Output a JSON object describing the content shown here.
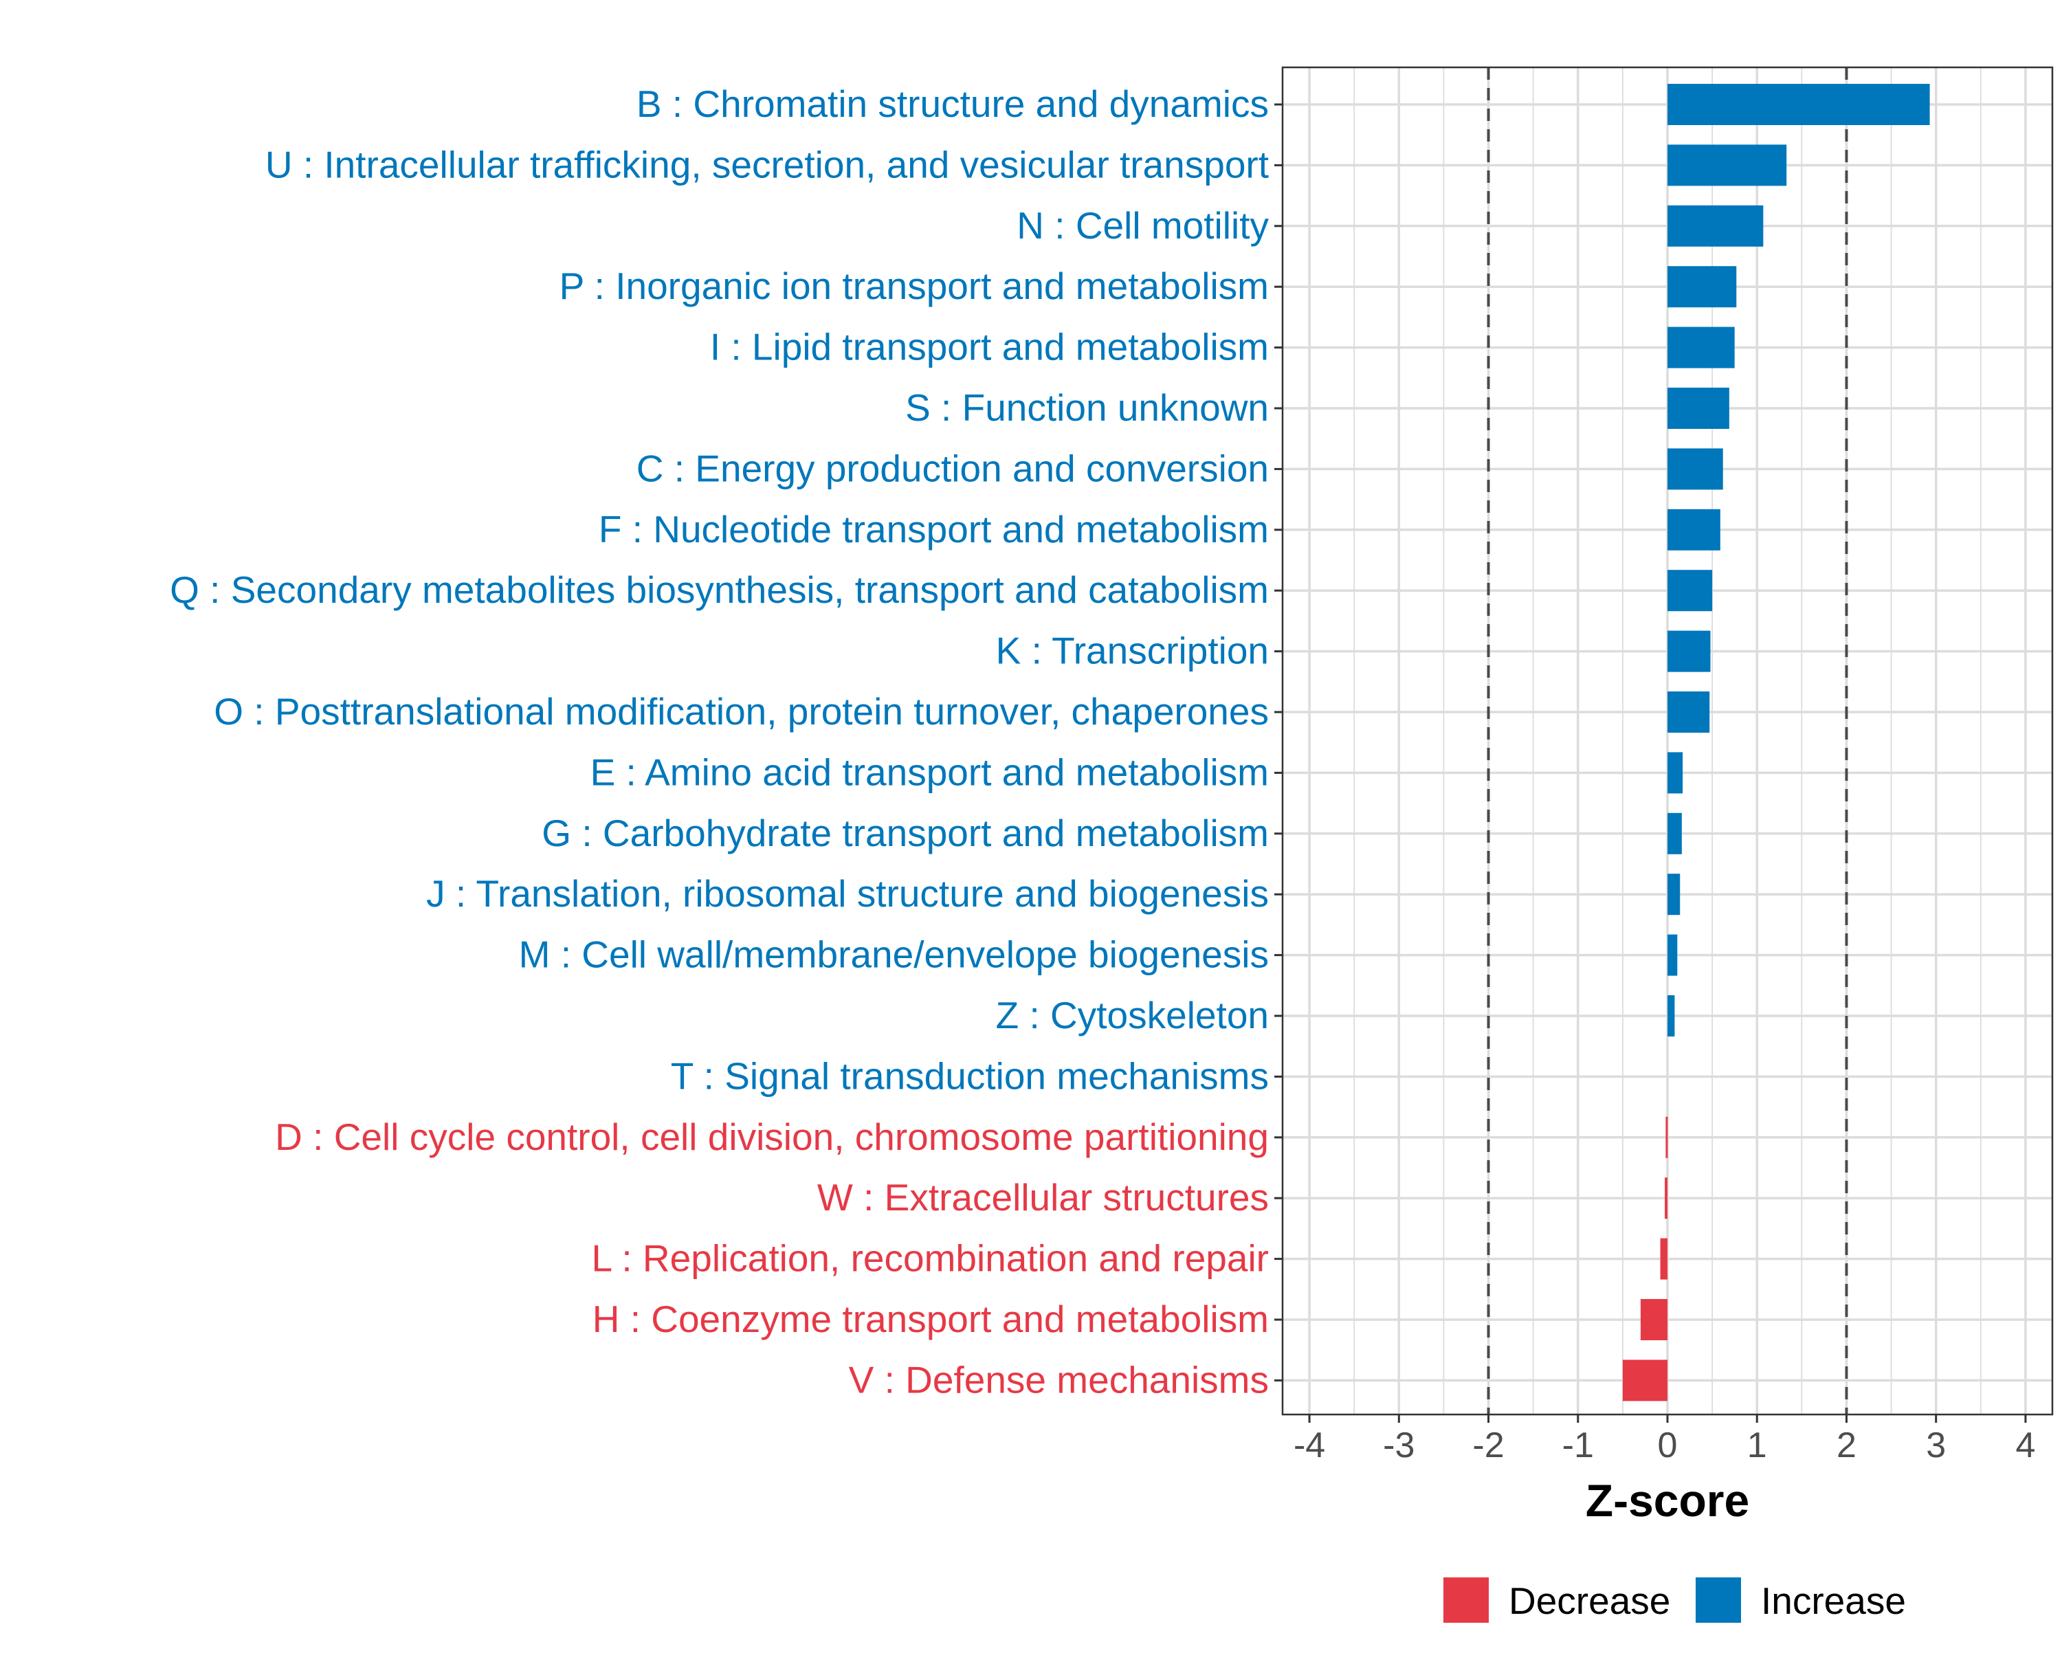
{
  "chart_data": {
    "type": "bar",
    "orientation": "horizontal",
    "title": "",
    "xlabel": "Z-score",
    "ylabel": "",
    "xlim": [
      -4.3,
      4.3
    ],
    "x_ticks": [
      -4,
      -3,
      -2,
      -1,
      0,
      1,
      2,
      3,
      4
    ],
    "x_tick_labels": [
      "-4",
      "-3",
      "-2",
      "-1",
      "0",
      "1",
      "2",
      "3",
      "4"
    ],
    "threshold_lines": [
      -2,
      2
    ],
    "grid": true,
    "legend_position": "bottom",
    "colors": {
      "Increase": "#0077bb",
      "Decrease": "#e63946"
    },
    "legend": [
      {
        "label": "Decrease",
        "group": "Decrease"
      },
      {
        "label": "Increase",
        "group": "Increase"
      }
    ],
    "categories": [
      {
        "label": "B : Chromatin structure and dynamics",
        "value": 2.93,
        "group": "Increase"
      },
      {
        "label": "U : Intracellular trafficking, secretion, and vesicular transport",
        "value": 1.33,
        "group": "Increase"
      },
      {
        "label": "N : Cell motility",
        "value": 1.07,
        "group": "Increase"
      },
      {
        "label": "P : Inorganic ion transport and metabolism",
        "value": 0.77,
        "group": "Increase"
      },
      {
        "label": "I : Lipid transport and metabolism",
        "value": 0.75,
        "group": "Increase"
      },
      {
        "label": "S : Function unknown",
        "value": 0.69,
        "group": "Increase"
      },
      {
        "label": "C : Energy production and conversion",
        "value": 0.62,
        "group": "Increase"
      },
      {
        "label": "F : Nucleotide transport and metabolism",
        "value": 0.59,
        "group": "Increase"
      },
      {
        "label": "Q : Secondary metabolites biosynthesis, transport and catabolism",
        "value": 0.5,
        "group": "Increase"
      },
      {
        "label": "K : Transcription",
        "value": 0.48,
        "group": "Increase"
      },
      {
        "label": "O : Posttranslational modification, protein turnover, chaperones",
        "value": 0.47,
        "group": "Increase"
      },
      {
        "label": "E : Amino acid transport and metabolism",
        "value": 0.17,
        "group": "Increase"
      },
      {
        "label": "G : Carbohydrate transport and metabolism",
        "value": 0.16,
        "group": "Increase"
      },
      {
        "label": "J : Translation, ribosomal structure and biogenesis",
        "value": 0.14,
        "group": "Increase"
      },
      {
        "label": "M : Cell wall/membrane/envelope biogenesis",
        "value": 0.11,
        "group": "Increase"
      },
      {
        "label": "Z : Cytoskeleton",
        "value": 0.08,
        "group": "Increase"
      },
      {
        "label": "T : Signal transduction mechanisms",
        "value": 0.0,
        "group": "Increase"
      },
      {
        "label": "D : Cell cycle control, cell division, chromosome partitioning",
        "value": -0.02,
        "group": "Decrease"
      },
      {
        "label": "W : Extracellular structures",
        "value": -0.03,
        "group": "Decrease"
      },
      {
        "label": "L : Replication, recombination and repair",
        "value": -0.08,
        "group": "Decrease"
      },
      {
        "label": "H : Coenzyme transport and metabolism",
        "value": -0.3,
        "group": "Decrease"
      },
      {
        "label": "V : Defense mechanisms",
        "value": -0.5,
        "group": "Decrease"
      }
    ]
  }
}
